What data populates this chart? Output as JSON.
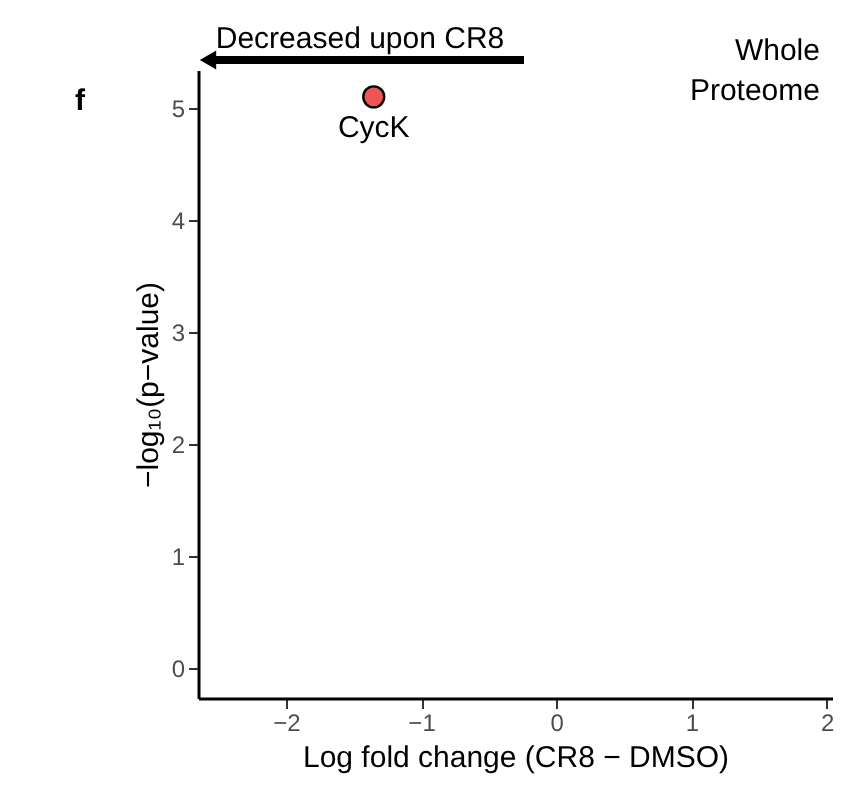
{
  "chart_data": {
    "type": "scatter",
    "xlabel": "Log fold change (CR8 − DMSO)",
    "ylabel": "−log₁₀(p−value)",
    "x": [
      -1.35
    ],
    "series": [
      {
        "color": "#f05454",
        "values": [
          5.1
        ]
      }
    ],
    "xlim": [
      -2.65,
      2.04
    ],
    "xticks": [
      -2,
      -1,
      0,
      1,
      2
    ],
    "ylim": [
      -0.27,
      5.34
    ],
    "yticks": [
      0,
      1,
      2,
      3,
      4,
      5
    ],
    "grid": false,
    "marker": "circle",
    "annotations": [
      "f",
      "Decreased upon CR8",
      "Whole Proteome",
      {
        "text": "CycK",
        "x": -1.35,
        "y": 5.1
      }
    ]
  }
}
